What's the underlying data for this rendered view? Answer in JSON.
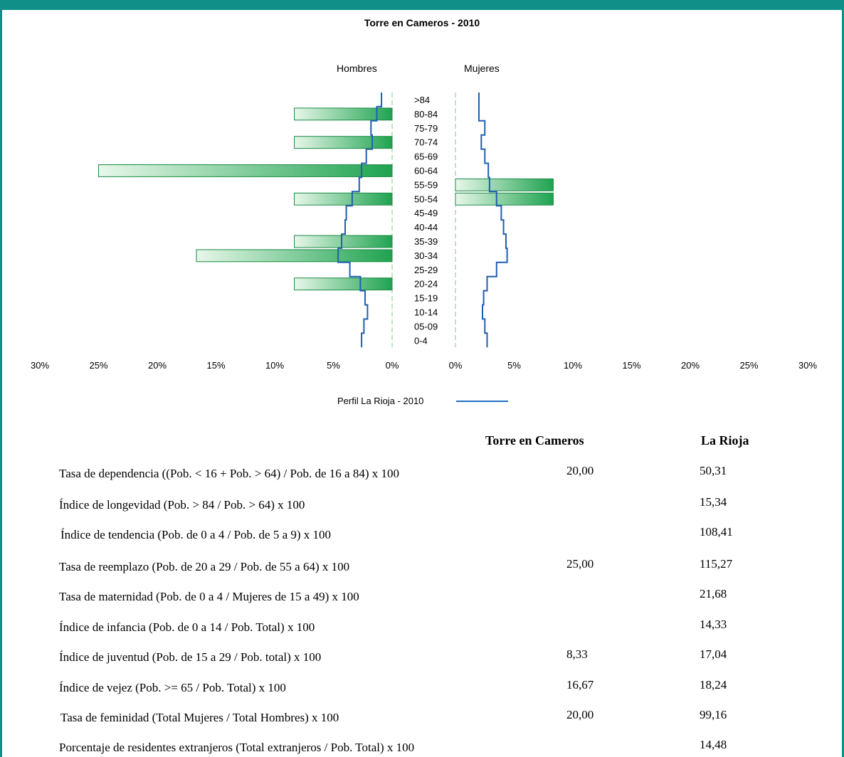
{
  "chart_data": {
    "type": "bar",
    "title": "Torre en Cameros - 2010",
    "left_label": "Hombres",
    "right_label": "Mujeres",
    "categories": [
      ">84",
      "80-84",
      "75-79",
      "70-74",
      "65-69",
      "60-64",
      "55-59",
      "50-54",
      "45-49",
      "40-44",
      "35-39",
      "30-34",
      "25-29",
      "20-24",
      "15-19",
      "10-14",
      "05-09",
      "0-4"
    ],
    "series": [
      {
        "side": "left",
        "values": [
          0,
          8.33,
          0,
          8.33,
          0,
          25.0,
          0,
          8.33,
          0,
          0,
          8.33,
          16.67,
          0,
          8.33,
          0,
          0,
          0,
          0
        ]
      },
      {
        "side": "right",
        "values": [
          0,
          0,
          0,
          0,
          0,
          0,
          8.33,
          8.33,
          0,
          0,
          0,
          0,
          0,
          0,
          0,
          0,
          0,
          0
        ]
      }
    ],
    "profile": {
      "name": "Perfil La Rioja - 2010",
      "left": [
        0.9,
        1.3,
        1.8,
        1.7,
        2.2,
        2.6,
        2.8,
        3.4,
        3.9,
        4.0,
        4.3,
        4.6,
        3.6,
        2.7,
        2.3,
        2.1,
        2.4,
        2.6
      ],
      "right": [
        2.0,
        2.0,
        2.5,
        2.2,
        2.5,
        2.8,
        2.9,
        3.5,
        3.9,
        4.1,
        4.3,
        4.4,
        3.5,
        2.7,
        2.4,
        2.3,
        2.5,
        2.7
      ]
    },
    "x_ticks_left": [
      "30%",
      "25%",
      "20%",
      "15%",
      "10%",
      "5%",
      "0%"
    ],
    "x_ticks_right": [
      "0%",
      "5%",
      "10%",
      "15%",
      "20%",
      "25%",
      "30%"
    ],
    "xlim": [
      0,
      30
    ],
    "colors": {
      "bar_dark": "#1fa350",
      "bar_light": "#e3f5e5",
      "profile": "#1f5fb0"
    }
  },
  "legend": {
    "label": "Perfil La Rioja - 2010"
  },
  "table": {
    "head_local": "Torre en Cameros",
    "head_region": "La Rioja",
    "rows": [
      {
        "label": "Tasa de dependencia  ((Pob. < 16 + Pob. > 64) / Pob. de 16 a 84) x 100",
        "local": "20,00",
        "region": "50,31"
      },
      {
        "label": "Índice de longevidad (Pob. > 84 / Pob. > 64) x 100",
        "local": "",
        "region": "15,34"
      },
      {
        "label": "Índice de tendencia (Pob. de 0 a 4 / Pob. de 5 a 9) x 100",
        "local": "",
        "region": "108,41"
      },
      {
        "label": "Tasa de reemplazo (Pob. de 20 a 29 / Pob. de 55 a 64) x 100",
        "local": "25,00",
        "region": "115,27"
      },
      {
        "label": "Tasa de maternidad (Pob. de 0 a 4 / Mujeres de 15 a 49) x 100",
        "local": "",
        "region": "21,68"
      },
      {
        "label": "Índice de infancia (Pob. de 0 a 14 / Pob. Total) x 100",
        "local": "",
        "region": "14,33"
      },
      {
        "label": "Índice de juventud (Pob. de 15 a 29 / Pob. total) x 100",
        "local": "8,33",
        "region": "17,04"
      },
      {
        "label": "Índice de vejez (Pob. >= 65 / Pob. Total) x 100",
        "local": "16,67",
        "region": "18,24"
      },
      {
        "label": "Tasa de feminidad (Total Mujeres / Total Hombres) x 100",
        "local": "20,00",
        "region": "99,16"
      },
      {
        "label": "Porcentaje de residentes extranjeros (Total extranjeros / Pob. Total) x 100",
        "local": "",
        "region": "14,48"
      }
    ]
  }
}
